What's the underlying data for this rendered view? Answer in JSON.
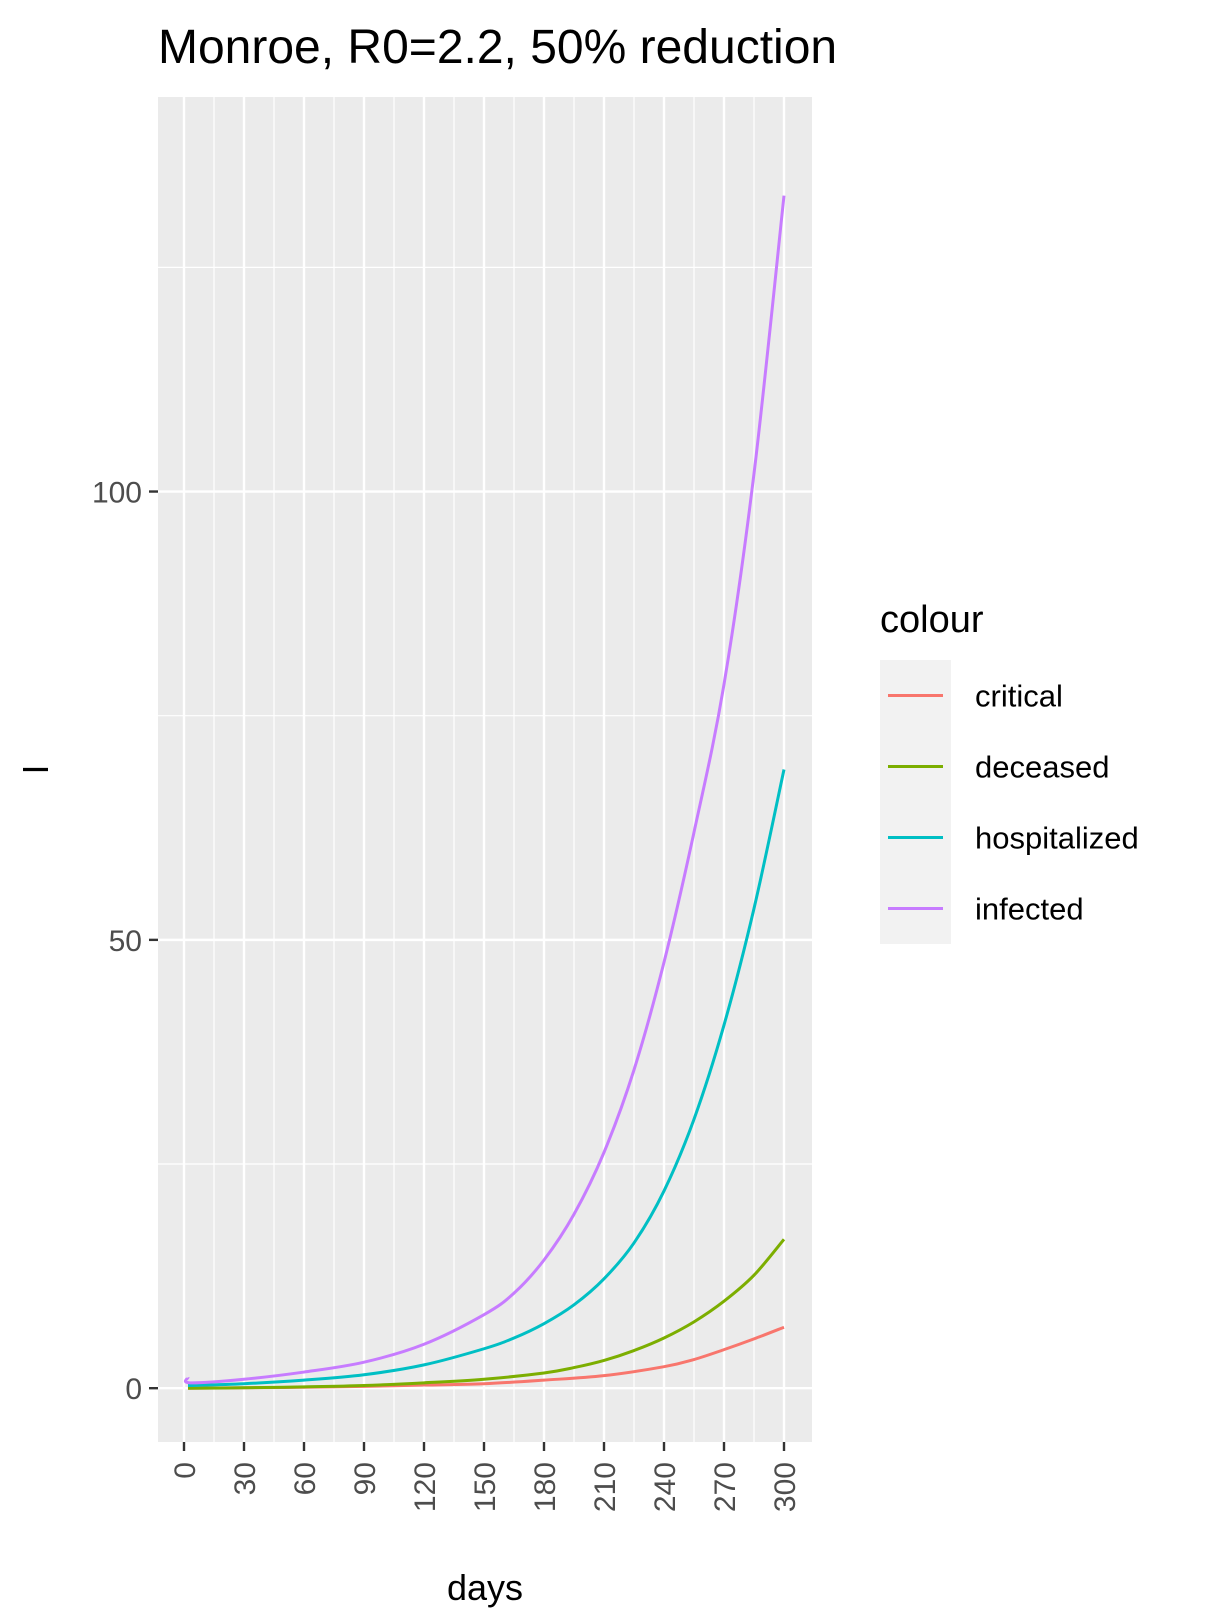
{
  "chart_data": {
    "type": "line",
    "title": "Monroe, R0=2.2, 50% reduction",
    "xlabel": "days",
    "ylabel": "I",
    "xlim": [
      -13,
      314
    ],
    "ylim": [
      -6,
      144
    ],
    "x_ticks": [
      0,
      30,
      60,
      90,
      120,
      150,
      180,
      210,
      240,
      270,
      300
    ],
    "x_tick_labels": [
      "0",
      "30",
      "60",
      "90",
      "120",
      "150",
      "180",
      "210",
      "240",
      "270",
      "300"
    ],
    "y_ticks": [
      0,
      50,
      100
    ],
    "y_tick_labels": [
      "0",
      "50",
      "100"
    ],
    "grid": true,
    "legend": {
      "title": "colour",
      "position": "right",
      "entries": [
        "critical",
        "deceased",
        "hospitalized",
        "infected"
      ]
    },
    "series": [
      {
        "name": "critical",
        "color": "#F8766D",
        "x": [
          2,
          30,
          60,
          90,
          120,
          150,
          180,
          210,
          240,
          255,
          270,
          285,
          300
        ],
        "y": [
          0.0,
          0.05,
          0.1,
          0.2,
          0.35,
          0.5,
          0.9,
          1.4,
          2.4,
          3.2,
          4.3,
          5.5,
          6.8
        ]
      },
      {
        "name": "deceased",
        "color": "#7CAE00",
        "x": [
          2,
          30,
          60,
          90,
          120,
          150,
          180,
          195,
          210,
          225,
          240,
          255,
          270,
          285,
          300
        ],
        "y": [
          0.0,
          0.05,
          0.15,
          0.3,
          0.6,
          1.0,
          1.7,
          2.3,
          3.1,
          4.2,
          5.6,
          7.4,
          9.7,
          12.6,
          16.6
        ]
      },
      {
        "name": "hospitalized",
        "color": "#00BFC4",
        "x": [
          2,
          30,
          60,
          90,
          120,
          150,
          165,
          180,
          195,
          210,
          225,
          240,
          255,
          270,
          285,
          300
        ],
        "y": [
          0.3,
          0.5,
          0.9,
          1.5,
          2.6,
          4.4,
          5.6,
          7.2,
          9.3,
          12.2,
          16.2,
          22.0,
          30.0,
          40.5,
          53.5,
          69.0
        ]
      },
      {
        "name": "infected",
        "color": "#C77CFF",
        "x": [
          2,
          3,
          30,
          60,
          90,
          120,
          150,
          165,
          180,
          195,
          210,
          225,
          240,
          255,
          270,
          285,
          300
        ],
        "y": [
          1.2,
          0.6,
          1.0,
          1.8,
          2.9,
          4.9,
          8.2,
          10.6,
          14.3,
          19.4,
          26.3,
          35.5,
          47.5,
          62.0,
          78.5,
          102.0,
          133.0
        ]
      }
    ]
  }
}
